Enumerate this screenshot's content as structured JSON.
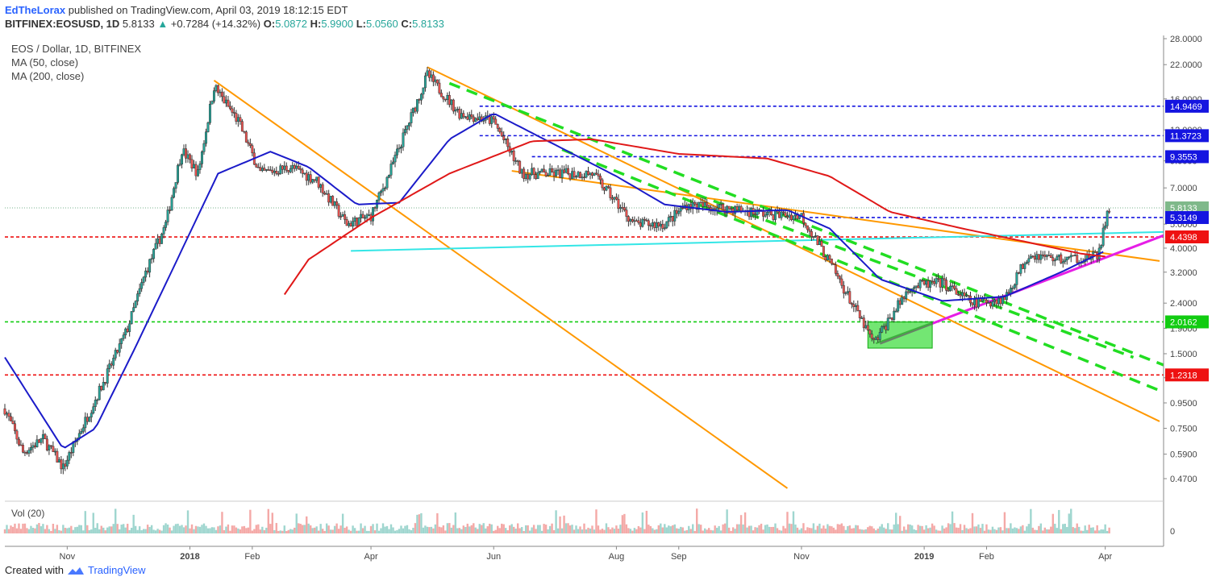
{
  "header": {
    "user": "EdTheLorax",
    "published": "published on TradingView.com, April 03, 2019 18:12:15 EDT",
    "symbol": "BITFINEX:EOSUSD, 1D",
    "last": "5.8133",
    "change": "+0.7284 (+14.32%)",
    "o_label": "O:",
    "o": "5.0872",
    "h_label": "H:",
    "h": "5.9900",
    "l_label": "L:",
    "l": "5.0560",
    "c_label": "C:",
    "c": "5.8133"
  },
  "legend": {
    "title": "EOS / Dollar, 1D, BITFINEX",
    "ma50": "MA (50, close)",
    "ma200": "MA (200, close)"
  },
  "volume_label": "Vol (20)",
  "footer": {
    "created": "Created with",
    "brand": "TradingView"
  },
  "colors": {
    "up": "#26a69a",
    "down": "#ef5350",
    "candle": "#333333",
    "ma50": "#1b1bc9",
    "ma200": "#e01818",
    "trend_orange": "#ff9800",
    "support_cyan": "#33e6e6",
    "magenta": "#e61ee6",
    "green_dash": "#22dd22",
    "blue_level": "#1515e0",
    "red_level": "#ee1111",
    "green_level": "#11cc11"
  },
  "chart_data": {
    "type": "candlestick",
    "scale": "log",
    "y_ticks": [
      "28.0000",
      "22.0000",
      "16.0000",
      "12.0000",
      "9.0000",
      "7.0000",
      "5.0000",
      "4.0000",
      "3.2000",
      "2.4000",
      "1.9000",
      "1.5000",
      "1.2000",
      "0.9500",
      "0.7500",
      "0.5900",
      "0.4700"
    ],
    "x_labels": [
      "Nov",
      "2018",
      "Feb",
      "Apr",
      "Jun",
      "Aug",
      "Sep",
      "Nov",
      "2019",
      "Feb",
      "Apr"
    ],
    "volume_axis": "0",
    "price_labels": [
      {
        "value": "14.9469",
        "color": "#1515e0"
      },
      {
        "value": "11.3723",
        "color": "#1515e0"
      },
      {
        "value": "9.3553",
        "color": "#1515e0"
      },
      {
        "value": "5.8133",
        "color": "#7fb98a"
      },
      {
        "value": "5.3149",
        "color": "#1515e0"
      },
      {
        "value": "4.4398",
        "color": "#ee1111"
      },
      {
        "value": "2.0162",
        "color": "#11cc11"
      },
      {
        "value": "1.2318",
        "color": "#ee1111"
      }
    ],
    "close_path": [
      [
        "2017-10-01",
        0.9
      ],
      [
        "2017-10-10",
        0.6
      ],
      [
        "2017-10-20",
        0.68
      ],
      [
        "2017-10-30",
        0.52
      ],
      [
        "2017-11-20",
        1.2
      ],
      [
        "2017-12-01",
        1.9
      ],
      [
        "2017-12-10",
        3.2
      ],
      [
        "2017-12-20",
        5.0
      ],
      [
        "2017-12-28",
        10.0
      ],
      [
        "2018-01-05",
        8.0
      ],
      [
        "2018-01-13",
        18.0
      ],
      [
        "2018-01-25",
        13.0
      ],
      [
        "2018-02-05",
        8.0
      ],
      [
        "2018-02-20",
        8.5
      ],
      [
        "2018-03-05",
        7.5
      ],
      [
        "2018-03-20",
        5.0
      ],
      [
        "2018-04-01",
        5.4
      ],
      [
        "2018-04-10",
        8.0
      ],
      [
        "2018-04-29",
        20.0
      ],
      [
        "2018-05-15",
        14.0
      ],
      [
        "2018-06-01",
        13.0
      ],
      [
        "2018-06-15",
        8.0
      ],
      [
        "2018-07-01",
        8.0
      ],
      [
        "2018-07-20",
        8.0
      ],
      [
        "2018-08-10",
        5.0
      ],
      [
        "2018-08-25",
        5.0
      ],
      [
        "2018-09-05",
        6.0
      ],
      [
        "2018-09-25",
        5.8
      ],
      [
        "2018-10-15",
        5.5
      ],
      [
        "2018-11-01",
        5.4
      ],
      [
        "2018-11-15",
        3.5
      ],
      [
        "2018-12-07",
        1.65
      ],
      [
        "2018-12-25",
        2.8
      ],
      [
        "2019-01-10",
        2.9
      ],
      [
        "2019-01-25",
        2.4
      ],
      [
        "2019-02-10",
        2.5
      ],
      [
        "2019-02-22",
        3.8
      ],
      [
        "2019-03-10",
        3.6
      ],
      [
        "2019-03-28",
        3.7
      ],
      [
        "2019-04-03",
        5.8133
      ]
    ],
    "ma50_path": [
      [
        "2017-10-01",
        1.45
      ],
      [
        "2017-10-30",
        0.62
      ],
      [
        "2017-11-15",
        0.75
      ],
      [
        "2017-12-05",
        1.6
      ],
      [
        "2017-12-25",
        3.5
      ],
      [
        "2018-01-15",
        8.0
      ],
      [
        "2018-02-10",
        9.8
      ],
      [
        "2018-03-01",
        8.5
      ],
      [
        "2018-03-25",
        6.0
      ],
      [
        "2018-04-15",
        6.1
      ],
      [
        "2018-05-10",
        11.0
      ],
      [
        "2018-06-01",
        14.0
      ],
      [
        "2018-07-01",
        10.5
      ],
      [
        "2018-08-01",
        7.8
      ],
      [
        "2018-08-25",
        6.0
      ],
      [
        "2018-09-25",
        5.6
      ],
      [
        "2018-10-25",
        5.7
      ],
      [
        "2018-11-15",
        4.8
      ],
      [
        "2018-12-10",
        3.0
      ],
      [
        "2019-01-10",
        2.45
      ],
      [
        "2019-02-10",
        2.55
      ],
      [
        "2019-03-10",
        3.2
      ],
      [
        "2019-04-01",
        3.9
      ]
    ],
    "ma200_path": [
      [
        "2018-02-17",
        2.6
      ],
      [
        "2018-03-01",
        3.6
      ],
      [
        "2018-04-01",
        5.3
      ],
      [
        "2018-05-10",
        8.0
      ],
      [
        "2018-06-20",
        10.8
      ],
      [
        "2018-07-20",
        11.0
      ],
      [
        "2018-09-01",
        9.6
      ],
      [
        "2018-10-15",
        9.2
      ],
      [
        "2018-11-15",
        7.8
      ],
      [
        "2018-12-15",
        5.6
      ],
      [
        "2019-01-20",
        4.8
      ],
      [
        "2019-02-20",
        4.25
      ],
      [
        "2019-03-20",
        3.8
      ],
      [
        "2019-04-01",
        3.7
      ]
    ]
  }
}
